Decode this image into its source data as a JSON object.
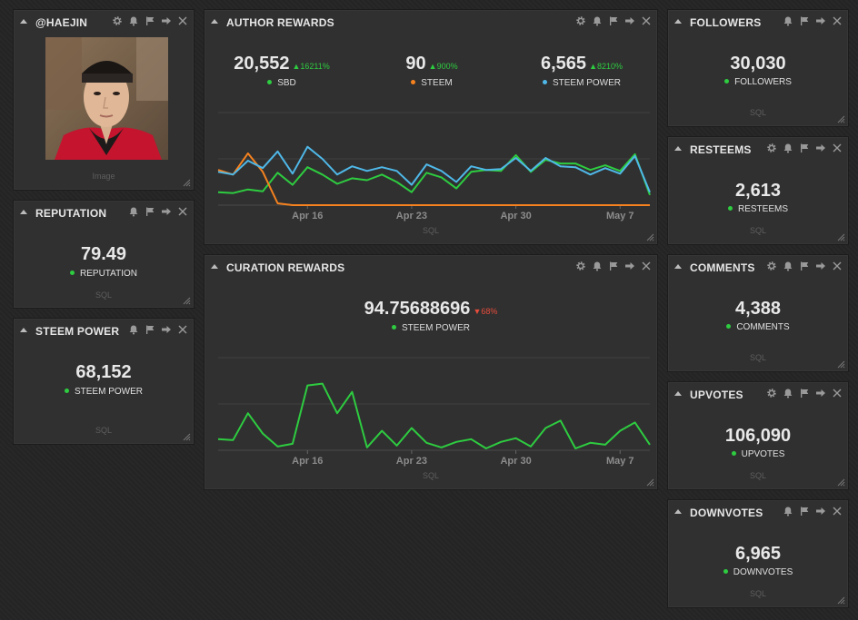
{
  "colors": {
    "green": "#2ecc40",
    "orange": "#f5821f",
    "blue": "#4fb8e8",
    "red": "#e74c3c"
  },
  "profile": {
    "title": "@HAEJIN",
    "image_caption": "Image"
  },
  "reputation": {
    "title": "REPUTATION",
    "value": "79.49",
    "label": "REPUTATION",
    "footer": "SQL"
  },
  "steem_power": {
    "title": "STEEM POWER",
    "value": "68,152",
    "label": "STEEM POWER",
    "footer": "SQL"
  },
  "author_rewards": {
    "title": "AUTHOR REWARDS",
    "stats": [
      {
        "value": "20,552",
        "change": "▲16211%",
        "label": "SBD"
      },
      {
        "value": "90",
        "change": "▲900%",
        "label": "STEEM"
      },
      {
        "value": "6,565",
        "change": "▲8210%",
        "label": "STEEM POWER"
      }
    ],
    "footer": "SQL"
  },
  "curation_rewards": {
    "title": "CURATION REWARDS",
    "value": "94.75688696",
    "change": "▼68%",
    "label": "STEEM POWER",
    "footer": "SQL"
  },
  "followers": {
    "title": "FOLLOWERS",
    "value": "30,030",
    "label": "FOLLOWERS",
    "footer": "SQL"
  },
  "resteems": {
    "title": "RESTEEMS",
    "value": "2,613",
    "label": "RESTEEMS",
    "footer": "SQL"
  },
  "comments": {
    "title": "COMMENTS",
    "value": "4,388",
    "label": "COMMENTS",
    "footer": "SQL"
  },
  "upvotes": {
    "title": "UPVOTES",
    "value": "106,090",
    "label": "UPVOTES",
    "footer": "SQL"
  },
  "downvotes": {
    "title": "DOWNVOTES",
    "value": "6,965",
    "label": "DOWNVOTES",
    "footer": "SQL"
  },
  "chart_data": [
    {
      "type": "line",
      "title": "AUTHOR REWARDS",
      "x_ticks": [
        "Apr 16",
        "Apr 23",
        "Apr 30",
        "May 7"
      ],
      "x_tick_index": [
        6,
        13,
        20,
        27
      ],
      "ylim": [
        0,
        100
      ],
      "grid": true,
      "series": [
        {
          "name": "SBD",
          "color": "#2ecc40",
          "values": [
            14,
            13,
            17,
            15,
            35,
            22,
            41,
            33,
            23,
            29,
            27,
            33,
            25,
            14,
            35,
            30,
            18,
            36,
            38,
            37,
            54,
            36,
            49,
            45,
            45,
            38,
            43,
            37,
            55,
            11
          ]
        },
        {
          "name": "STEEM",
          "color": "#f5821f",
          "values": [
            38,
            33,
            56,
            36,
            2,
            0,
            0,
            0,
            0,
            0,
            0,
            0,
            0,
            0,
            0,
            0,
            0,
            0,
            0,
            0,
            0,
            0,
            0,
            0,
            0,
            0,
            0,
            0,
            0,
            0
          ]
        },
        {
          "name": "STEEM POWER",
          "color": "#4fb8e8",
          "values": [
            36,
            33,
            48,
            40,
            58,
            34,
            63,
            50,
            33,
            42,
            37,
            41,
            37,
            22,
            44,
            37,
            25,
            42,
            38,
            39,
            51,
            37,
            51,
            42,
            41,
            33,
            40,
            34,
            53,
            14
          ]
        }
      ]
    },
    {
      "type": "line",
      "title": "CURATION REWARDS",
      "x_ticks": [
        "Apr 16",
        "Apr 23",
        "Apr 30",
        "May 7"
      ],
      "x_tick_index": [
        6,
        13,
        20,
        27
      ],
      "ylim": [
        0,
        100
      ],
      "grid": true,
      "series": [
        {
          "name": "STEEM POWER",
          "color": "#2ecc40",
          "values": [
            12,
            11,
            40,
            18,
            4,
            7,
            70,
            72,
            40,
            63,
            3,
            21,
            5,
            24,
            8,
            3,
            9,
            12,
            2,
            9,
            13,
            4,
            24,
            32,
            2,
            8,
            6,
            21,
            30,
            6
          ]
        }
      ]
    }
  ]
}
